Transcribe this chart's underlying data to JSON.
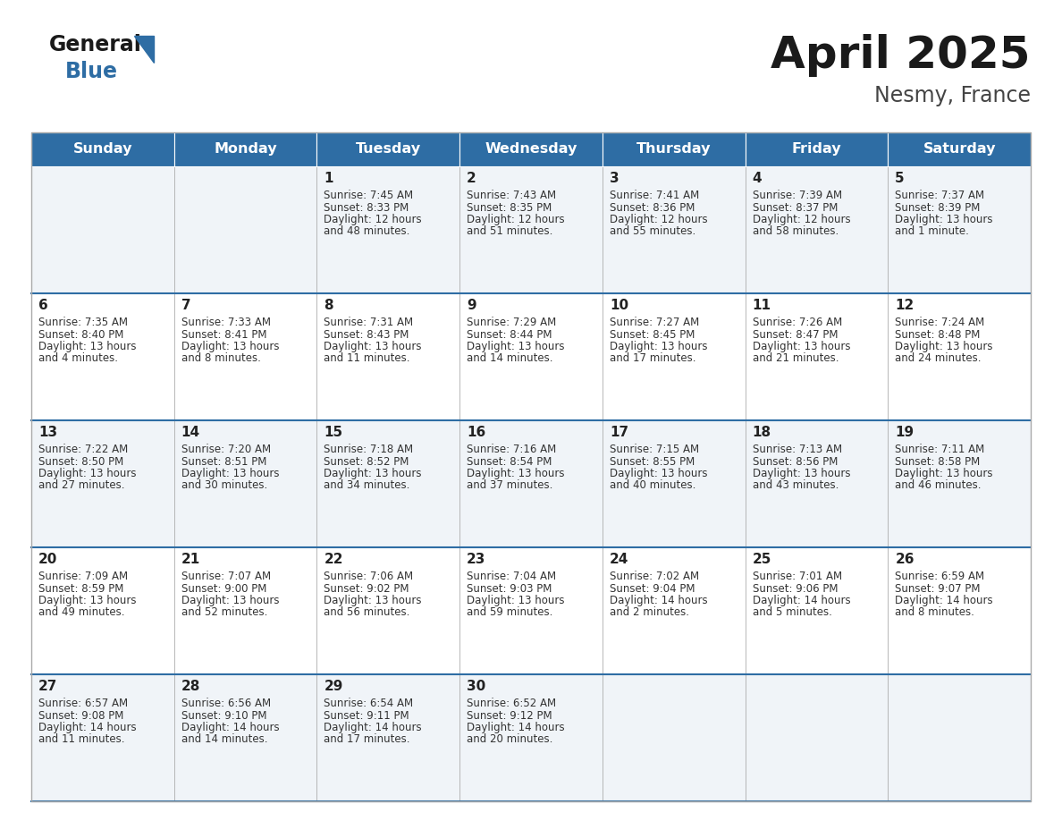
{
  "title": "April 2025",
  "subtitle": "Nesmy, France",
  "header_bg_color": "#2E6DA4",
  "header_text_color": "#FFFFFF",
  "days_of_week": [
    "Sunday",
    "Monday",
    "Tuesday",
    "Wednesday",
    "Thursday",
    "Friday",
    "Saturday"
  ],
  "row0_bg": "#F0F4F8",
  "row1_bg": "#FFFFFF",
  "row2_bg": "#F0F4F8",
  "row3_bg": "#FFFFFF",
  "row4_bg": "#F0F4F8",
  "cell_border_color": "#AAAAAA",
  "day_num_color": "#222222",
  "info_text_color": "#333333",
  "calendar_data": [
    [
      {
        "day": null,
        "sunrise": null,
        "sunset": null,
        "daylight": null
      },
      {
        "day": null,
        "sunrise": null,
        "sunset": null,
        "daylight": null
      },
      {
        "day": 1,
        "sunrise": "7:45 AM",
        "sunset": "8:33 PM",
        "daylight": "12 hours\nand 48 minutes."
      },
      {
        "day": 2,
        "sunrise": "7:43 AM",
        "sunset": "8:35 PM",
        "daylight": "12 hours\nand 51 minutes."
      },
      {
        "day": 3,
        "sunrise": "7:41 AM",
        "sunset": "8:36 PM",
        "daylight": "12 hours\nand 55 minutes."
      },
      {
        "day": 4,
        "sunrise": "7:39 AM",
        "sunset": "8:37 PM",
        "daylight": "12 hours\nand 58 minutes."
      },
      {
        "day": 5,
        "sunrise": "7:37 AM",
        "sunset": "8:39 PM",
        "daylight": "13 hours\nand 1 minute."
      }
    ],
    [
      {
        "day": 6,
        "sunrise": "7:35 AM",
        "sunset": "8:40 PM",
        "daylight": "13 hours\nand 4 minutes."
      },
      {
        "day": 7,
        "sunrise": "7:33 AM",
        "sunset": "8:41 PM",
        "daylight": "13 hours\nand 8 minutes."
      },
      {
        "day": 8,
        "sunrise": "7:31 AM",
        "sunset": "8:43 PM",
        "daylight": "13 hours\nand 11 minutes."
      },
      {
        "day": 9,
        "sunrise": "7:29 AM",
        "sunset": "8:44 PM",
        "daylight": "13 hours\nand 14 minutes."
      },
      {
        "day": 10,
        "sunrise": "7:27 AM",
        "sunset": "8:45 PM",
        "daylight": "13 hours\nand 17 minutes."
      },
      {
        "day": 11,
        "sunrise": "7:26 AM",
        "sunset": "8:47 PM",
        "daylight": "13 hours\nand 21 minutes."
      },
      {
        "day": 12,
        "sunrise": "7:24 AM",
        "sunset": "8:48 PM",
        "daylight": "13 hours\nand 24 minutes."
      }
    ],
    [
      {
        "day": 13,
        "sunrise": "7:22 AM",
        "sunset": "8:50 PM",
        "daylight": "13 hours\nand 27 minutes."
      },
      {
        "day": 14,
        "sunrise": "7:20 AM",
        "sunset": "8:51 PM",
        "daylight": "13 hours\nand 30 minutes."
      },
      {
        "day": 15,
        "sunrise": "7:18 AM",
        "sunset": "8:52 PM",
        "daylight": "13 hours\nand 34 minutes."
      },
      {
        "day": 16,
        "sunrise": "7:16 AM",
        "sunset": "8:54 PM",
        "daylight": "13 hours\nand 37 minutes."
      },
      {
        "day": 17,
        "sunrise": "7:15 AM",
        "sunset": "8:55 PM",
        "daylight": "13 hours\nand 40 minutes."
      },
      {
        "day": 18,
        "sunrise": "7:13 AM",
        "sunset": "8:56 PM",
        "daylight": "13 hours\nand 43 minutes."
      },
      {
        "day": 19,
        "sunrise": "7:11 AM",
        "sunset": "8:58 PM",
        "daylight": "13 hours\nand 46 minutes."
      }
    ],
    [
      {
        "day": 20,
        "sunrise": "7:09 AM",
        "sunset": "8:59 PM",
        "daylight": "13 hours\nand 49 minutes."
      },
      {
        "day": 21,
        "sunrise": "7:07 AM",
        "sunset": "9:00 PM",
        "daylight": "13 hours\nand 52 minutes."
      },
      {
        "day": 22,
        "sunrise": "7:06 AM",
        "sunset": "9:02 PM",
        "daylight": "13 hours\nand 56 minutes."
      },
      {
        "day": 23,
        "sunrise": "7:04 AM",
        "sunset": "9:03 PM",
        "daylight": "13 hours\nand 59 minutes."
      },
      {
        "day": 24,
        "sunrise": "7:02 AM",
        "sunset": "9:04 PM",
        "daylight": "14 hours\nand 2 minutes."
      },
      {
        "day": 25,
        "sunrise": "7:01 AM",
        "sunset": "9:06 PM",
        "daylight": "14 hours\nand 5 minutes."
      },
      {
        "day": 26,
        "sunrise": "6:59 AM",
        "sunset": "9:07 PM",
        "daylight": "14 hours\nand 8 minutes."
      }
    ],
    [
      {
        "day": 27,
        "sunrise": "6:57 AM",
        "sunset": "9:08 PM",
        "daylight": "14 hours\nand 11 minutes."
      },
      {
        "day": 28,
        "sunrise": "6:56 AM",
        "sunset": "9:10 PM",
        "daylight": "14 hours\nand 14 minutes."
      },
      {
        "day": 29,
        "sunrise": "6:54 AM",
        "sunset": "9:11 PM",
        "daylight": "14 hours\nand 17 minutes."
      },
      {
        "day": 30,
        "sunrise": "6:52 AM",
        "sunset": "9:12 PM",
        "daylight": "14 hours\nand 20 minutes."
      },
      {
        "day": null,
        "sunrise": null,
        "sunset": null,
        "daylight": null
      },
      {
        "day": null,
        "sunrise": null,
        "sunset": null,
        "daylight": null
      },
      {
        "day": null,
        "sunrise": null,
        "sunset": null,
        "daylight": null
      }
    ]
  ],
  "logo_color_general": "#1a1a1a",
  "logo_color_blue": "#2E6DA4",
  "title_color": "#1a1a1a",
  "subtitle_color": "#444444",
  "row_bg_colors": [
    "#F0F4F8",
    "#FFFFFF",
    "#F0F4F8",
    "#FFFFFF",
    "#F0F4F8"
  ]
}
